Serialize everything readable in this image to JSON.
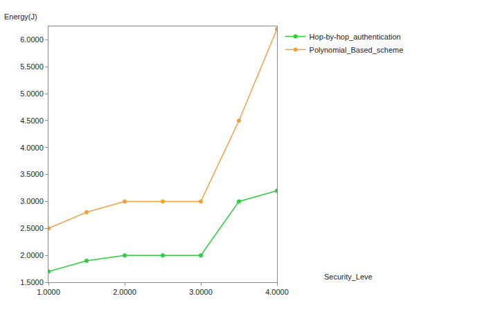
{
  "chart_data": {
    "type": "line",
    "x_label": "Security_Leve",
    "y_label": "Energy(J)",
    "x": [
      1,
      1.5,
      2,
      2.5,
      3,
      3.5,
      4
    ],
    "series": [
      {
        "name": "Hop-by-hop_authentication",
        "color": "#2ecc40",
        "marker": "circle",
        "values": [
          1.7,
          1.9,
          2.0,
          2.0,
          2.0,
          3.0,
          3.2
        ]
      },
      {
        "name": "Polynomial_Based_scheme",
        "color": "#f0a040",
        "marker": "circle",
        "values": [
          2.5,
          2.8,
          3.0,
          3.0,
          3.0,
          4.5,
          6.2
        ]
      }
    ],
    "xlim": [
      1,
      4
    ],
    "xticks": [
      {
        "value": 1,
        "label": "1.0000"
      },
      {
        "value": 2,
        "label": "2.0000"
      },
      {
        "value": 3,
        "label": "3.0000"
      },
      {
        "value": 4,
        "label": "4.0000"
      }
    ],
    "ylim": [
      1.5,
      6.25
    ],
    "yticks": [
      {
        "value": 1.5,
        "label": "1.5000"
      },
      {
        "value": 2,
        "label": "2.0000"
      },
      {
        "value": 2.5,
        "label": "2.5000"
      },
      {
        "value": 3,
        "label": "3.0000"
      },
      {
        "value": 3.5,
        "label": "3.5000"
      },
      {
        "value": 4,
        "label": "4.0000"
      },
      {
        "value": 4.5,
        "label": "4.5000"
      },
      {
        "value": 5,
        "label": "5.0000"
      },
      {
        "value": 5.5,
        "label": "5.5000"
      },
      {
        "value": 6,
        "label": "6.0000"
      }
    ],
    "grid": false,
    "legend": "outside top right"
  }
}
